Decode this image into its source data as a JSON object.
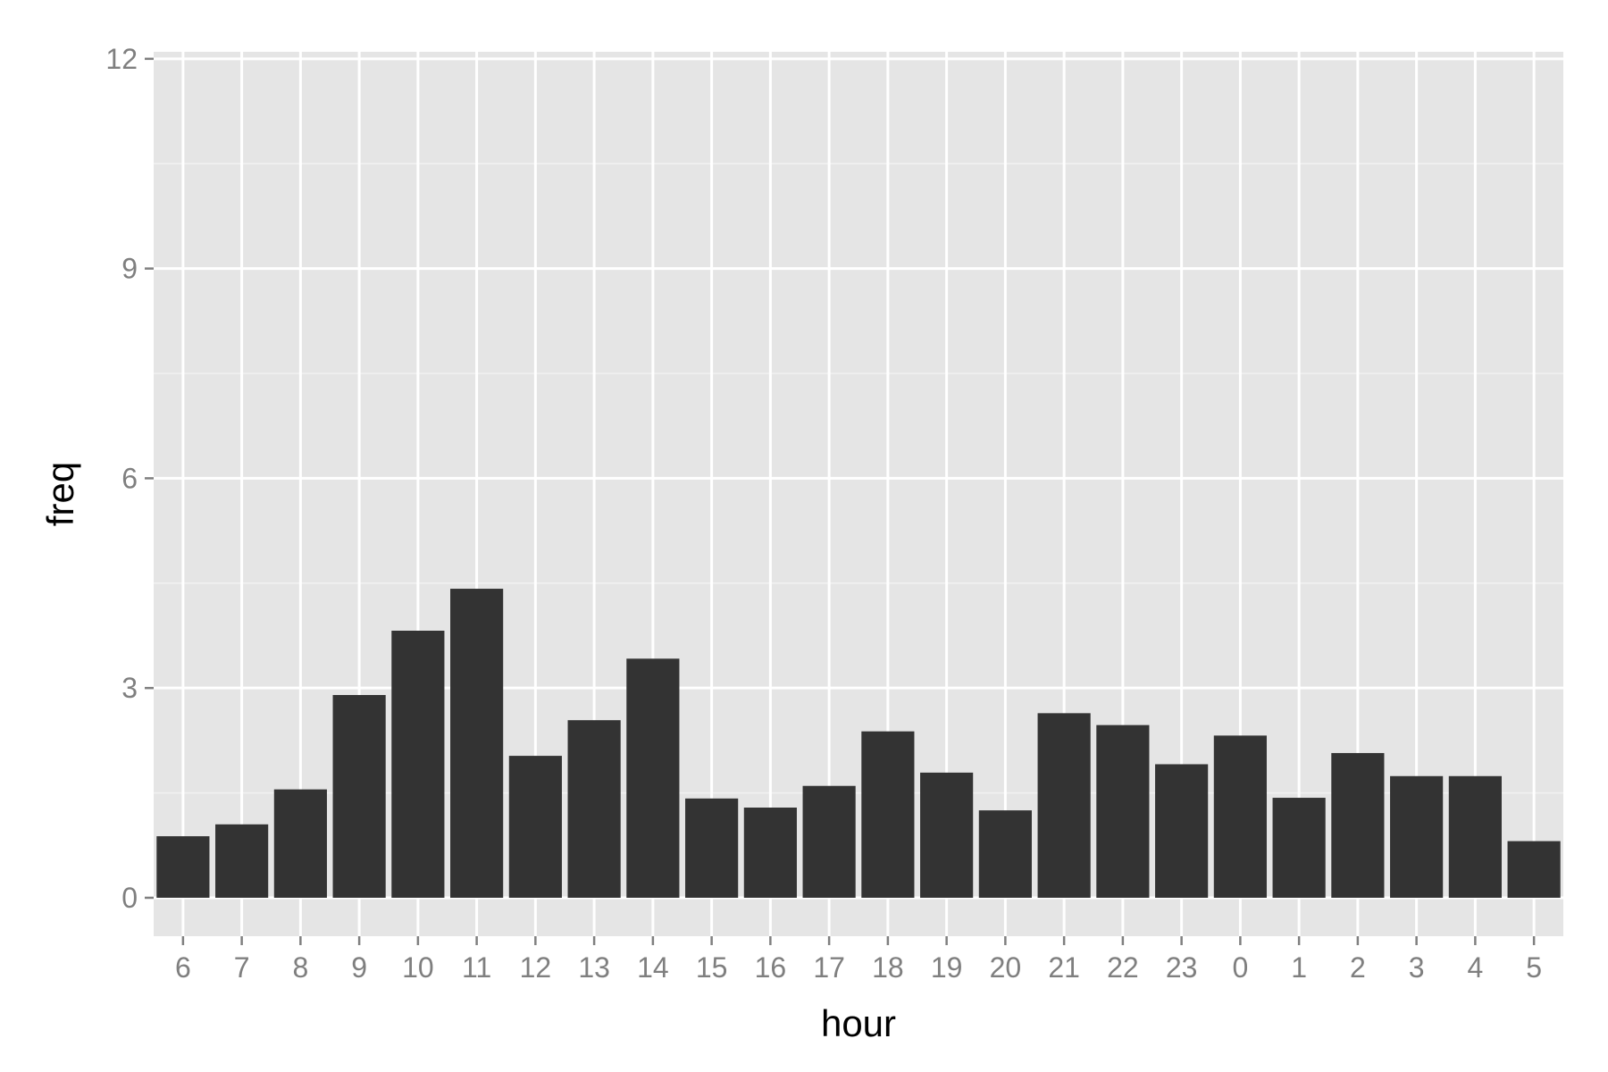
{
  "chart_data": {
    "type": "bar",
    "title": "",
    "xlabel": "hour",
    "ylabel": "freq",
    "categories": [
      "6",
      "7",
      "8",
      "9",
      "10",
      "11",
      "12",
      "13",
      "14",
      "15",
      "16",
      "17",
      "18",
      "19",
      "20",
      "21",
      "22",
      "23",
      "0",
      "1",
      "2",
      "3",
      "4",
      "5"
    ],
    "values": [
      0.88,
      1.05,
      1.55,
      2.9,
      3.82,
      4.42,
      2.03,
      2.54,
      3.42,
      1.42,
      1.29,
      1.6,
      2.38,
      1.79,
      1.25,
      2.64,
      2.47,
      1.91,
      2.32,
      1.43,
      2.07,
      1.74,
      1.74,
      0.81
    ],
    "ylim": [
      -0.55,
      12.1
    ],
    "yticks": [
      0,
      3,
      6,
      9,
      12
    ],
    "yticks_minor": [
      1.5,
      4.5,
      7.5,
      10.5
    ],
    "grid": true,
    "legend": "none",
    "colors": {
      "panel": "#e5e5e5",
      "grid": "#ffffff",
      "bar": "#333333",
      "tick_text": "#7f7f7f",
      "tick_mark": "#7f7f7f",
      "axis_title": "#000000"
    }
  }
}
